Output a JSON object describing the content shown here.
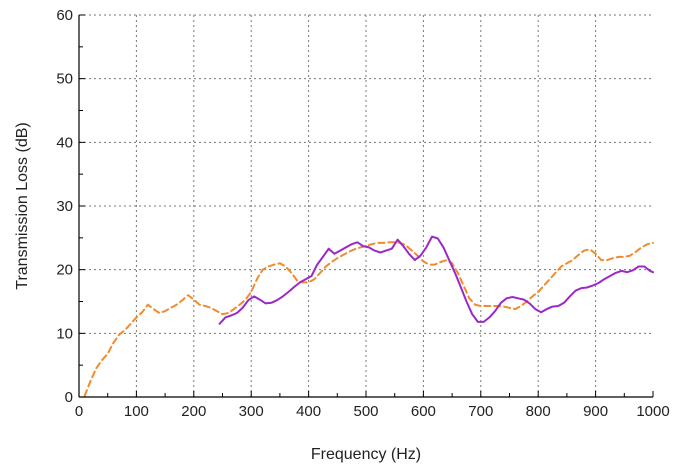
{
  "chart_data": {
    "type": "line",
    "xlabel": "Frequency (Hz)",
    "ylabel": "Transmission Loss (dB)",
    "xlim": [
      0,
      1000
    ],
    "ylim": [
      0,
      60
    ],
    "x_ticks": [
      "0",
      "100",
      "200",
      "300",
      "400",
      "500",
      "600",
      "700",
      "800",
      "900",
      "1000"
    ],
    "y_ticks": [
      "0",
      "10",
      "20",
      "30",
      "40",
      "50",
      "60"
    ],
    "grid": true,
    "legend": "none",
    "series": [
      {
        "style": "dashed",
        "color": "#f28a2e",
        "x": [
          10,
          20,
          30,
          40,
          50,
          60,
          70,
          80,
          90,
          100,
          110,
          120,
          130,
          140,
          150,
          160,
          170,
          180,
          190,
          200,
          210,
          220,
          230,
          240,
          250,
          260,
          270,
          280,
          290,
          300,
          310,
          320,
          330,
          340,
          350,
          360,
          370,
          380,
          390,
          400,
          410,
          420,
          430,
          440,
          450,
          460,
          470,
          480,
          490,
          500,
          510,
          520,
          530,
          540,
          550,
          560,
          570,
          580,
          590,
          600,
          610,
          620,
          630,
          640,
          650,
          660,
          670,
          680,
          690,
          700,
          710,
          720,
          730,
          740,
          750,
          760,
          770,
          780,
          790,
          800,
          810,
          820,
          830,
          840,
          850,
          860,
          870,
          880,
          890,
          900,
          910,
          920,
          930,
          940,
          950,
          960,
          970,
          980,
          990,
          1000
        ],
        "y": [
          0.2,
          2.5,
          4.5,
          5.8,
          6.8,
          8.5,
          9.8,
          10.5,
          11.5,
          12.5,
          13.3,
          14.5,
          13.8,
          13.2,
          13.5,
          14,
          14.5,
          15.2,
          16,
          15.3,
          14.5,
          14.3,
          14,
          13.5,
          13,
          13.2,
          13.8,
          14.5,
          15.3,
          16.5,
          18.5,
          20,
          20.5,
          20.8,
          21,
          20.5,
          19.5,
          18.3,
          18,
          18,
          18.5,
          19.5,
          20.5,
          21.2,
          21.8,
          22.3,
          22.8,
          23.2,
          23.5,
          23.7,
          24,
          24.2,
          24.2,
          24.3,
          24.3,
          24.2,
          23.8,
          23,
          22.2,
          21.3,
          20.8,
          20.8,
          21.2,
          21.5,
          21,
          19.5,
          17.5,
          15.5,
          14.5,
          14.3,
          14.3,
          14.3,
          14.3,
          14.2,
          14,
          13.8,
          14.3,
          15,
          15.8,
          16.5,
          17.5,
          18.5,
          19.5,
          20.5,
          21,
          21.5,
          22.3,
          23,
          23.2,
          22.5,
          21.5,
          21.5,
          21.8,
          22,
          22,
          22.2,
          22.8,
          23.5,
          24,
          24.2
        ]
      },
      {
        "style": "solid",
        "color": "#9b28c8",
        "x": [
          245,
          255,
          265,
          275,
          285,
          295,
          305,
          315,
          325,
          335,
          345,
          355,
          365,
          375,
          385,
          395,
          405,
          415,
          425,
          435,
          445,
          455,
          465,
          475,
          485,
          495,
          505,
          515,
          525,
          535,
          545,
          555,
          565,
          575,
          585,
          595,
          605,
          615,
          625,
          635,
          645,
          655,
          665,
          675,
          685,
          695,
          705,
          715,
          725,
          735,
          745,
          755,
          765,
          775,
          785,
          795,
          805,
          815,
          825,
          835,
          845,
          855,
          865,
          875,
          885,
          895,
          905,
          915,
          925,
          935,
          945,
          955,
          965,
          975,
          985,
          995,
          1000
        ],
        "y": [
          11.5,
          12.5,
          12.8,
          13.2,
          14,
          15.2,
          15.8,
          15.3,
          14.7,
          14.8,
          15.2,
          15.8,
          16.5,
          17.3,
          18,
          18.5,
          19,
          20.8,
          22,
          23.3,
          22.5,
          23,
          23.5,
          24,
          24.3,
          23.7,
          23.5,
          23,
          22.7,
          23,
          23.3,
          24.7,
          23.7,
          22.5,
          21.5,
          22.2,
          23.5,
          25.2,
          24.9,
          23.5,
          21.5,
          19.5,
          17.3,
          15,
          13,
          11.8,
          11.8,
          12.5,
          13.5,
          14.8,
          15.5,
          15.7,
          15.5,
          15.3,
          14.7,
          13.8,
          13.3,
          13.8,
          14.2,
          14.3,
          14.8,
          15.8,
          16.7,
          17.1,
          17.2,
          17.5,
          17.9,
          18.5,
          19,
          19.5,
          19.8,
          19.6,
          19.9,
          20.5,
          20.5,
          19.8,
          19.6
        ]
      }
    ]
  }
}
